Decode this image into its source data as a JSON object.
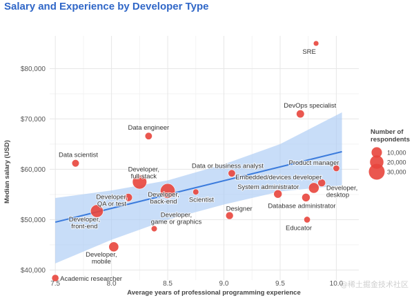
{
  "chart_data": {
    "type": "scatter",
    "title": "Salary and Experience by Developer Type",
    "xlabel": "Average years of professional programming experience",
    "ylabel": "Median salary (USD)",
    "xlim": [
      7.45,
      10.2
    ],
    "ylim": [
      38000,
      86500
    ],
    "x_ticks": [
      7.5,
      8.0,
      8.5,
      9.0,
      9.5,
      10.0
    ],
    "x_tick_labels": [
      "7.5",
      "8.0",
      "8.5",
      "9.0",
      "9.5",
      "10.0"
    ],
    "y_ticks": [
      40000,
      50000,
      60000,
      70000,
      80000
    ],
    "y_tick_labels": [
      "$40,000",
      "$50,000",
      "$60,000",
      "$70,000",
      "$80,000"
    ],
    "grid": true,
    "marker_color": "#e8453c",
    "trend_color": "#3b7bdc",
    "band_color": "#a7c8f3",
    "trend_line": {
      "x": [
        7.5,
        10.05
      ],
      "y": [
        49500,
        63500
      ]
    },
    "confidence_band": {
      "x": [
        7.5,
        8.0,
        8.5,
        9.0,
        9.5,
        10.05
      ],
      "upper": [
        54300,
        55800,
        57800,
        61000,
        65000,
        71300
      ],
      "lower": [
        41300,
        46000,
        50000,
        53000,
        55600,
        56800
      ]
    },
    "legend": {
      "title": "Number of respondents",
      "position": "right",
      "entries": [
        {
          "label": "10,000",
          "size": 10000
        },
        {
          "label": "20,000",
          "size": 20000
        },
        {
          "label": "30,000",
          "size": 30000
        }
      ]
    },
    "points": [
      {
        "label": "SRE",
        "x": 9.82,
        "y": 85000,
        "respondents": 1000
      },
      {
        "label": "DevOps specialist",
        "x": 9.68,
        "y": 71000,
        "respondents": 4500
      },
      {
        "label": "Data engineer",
        "x": 8.33,
        "y": 66600,
        "respondents": 3200
      },
      {
        "label": "Data scientist",
        "x": 7.68,
        "y": 61200,
        "respondents": 3400
      },
      {
        "label": "Product manager",
        "x": 10.0,
        "y": 60200,
        "respondents": 2200
      },
      {
        "label": "Data or business analyst",
        "x": 9.07,
        "y": 59200,
        "respondents": 3300
      },
      {
        "label": "Developer, full-stack",
        "x": 8.25,
        "y": 57500,
        "respondents": 23000
      },
      {
        "label": "Embedded/devices developer",
        "x": 9.87,
        "y": 57300,
        "respondents": 4000
      },
      {
        "label": "Developer, desktop",
        "x": 9.8,
        "y": 56300,
        "respondents": 10000
      },
      {
        "label": "Developer, back-end",
        "x": 8.5,
        "y": 55700,
        "respondents": 25000
      },
      {
        "label": "Scientist",
        "x": 8.75,
        "y": 55500,
        "respondents": 1600
      },
      {
        "label": "System administrator",
        "x": 9.48,
        "y": 55100,
        "respondents": 5000
      },
      {
        "label": "Database administrator",
        "x": 9.73,
        "y": 54400,
        "respondents": 5000
      },
      {
        "label": "Developer, QA or test",
        "x": 8.15,
        "y": 54400,
        "respondents": 4500
      },
      {
        "label": "Developer, front-end",
        "x": 7.87,
        "y": 51700,
        "respondents": 17000
      },
      {
        "label": "Designer",
        "x": 9.05,
        "y": 50800,
        "respondents": 3800
      },
      {
        "label": "Educator",
        "x": 9.74,
        "y": 50000,
        "respondents": 2100
      },
      {
        "label": "Developer, game or graphics",
        "x": 8.38,
        "y": 48200,
        "respondents": 1600
      },
      {
        "label": "Developer, mobile",
        "x": 8.02,
        "y": 44600,
        "respondents": 8500
      },
      {
        "label": "Academic researcher",
        "x": 7.5,
        "y": 38400,
        "respondents": 3000
      }
    ]
  },
  "watermark": "@稀土掘金技术社区"
}
